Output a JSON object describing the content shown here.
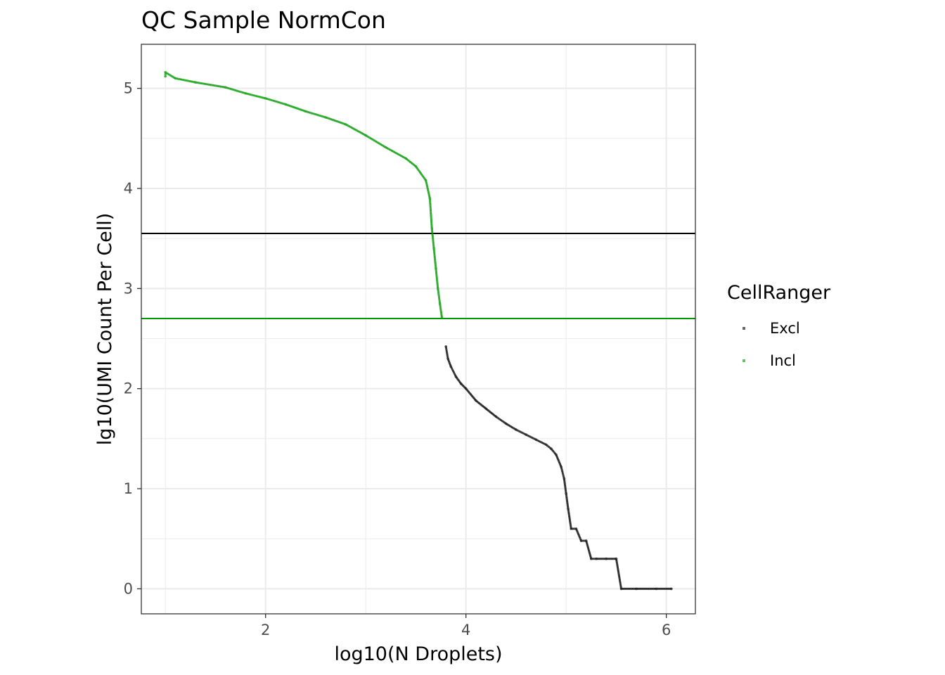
{
  "chart_data": {
    "type": "scatter",
    "title": "QC Sample NormCon",
    "xlabel": "log10(N Droplets)",
    "ylabel": "lg10(UMI Count Per Cell)",
    "xlim": [
      0.76,
      6.29
    ],
    "ylim": [
      -0.25,
      5.44
    ],
    "x_ticks": [
      2,
      4,
      6
    ],
    "y_ticks": [
      0,
      1,
      2,
      3,
      4,
      5
    ],
    "grid": true,
    "legend": {
      "title": "CellRanger",
      "position": "right",
      "entries": [
        {
          "label": "Excl",
          "color": "#000000"
        },
        {
          "label": "Incl",
          "color": "#009900"
        }
      ]
    },
    "hlines": [
      {
        "y": 3.55,
        "color": "#000000"
      },
      {
        "y": 2.7,
        "color": "#009900"
      }
    ],
    "series": [
      {
        "name": "Incl",
        "color": "#009900",
        "x": [
          1.0,
          1.0,
          1.1,
          1.3,
          1.6,
          1.8,
          2.0,
          2.2,
          2.4,
          2.6,
          2.8,
          3.0,
          3.2,
          3.4,
          3.5,
          3.6,
          3.64,
          3.66,
          3.68,
          3.7,
          3.72,
          3.74,
          3.76
        ],
        "y": [
          5.12,
          5.16,
          5.1,
          5.06,
          5.01,
          4.95,
          4.9,
          4.84,
          4.77,
          4.71,
          4.64,
          4.53,
          4.41,
          4.3,
          4.22,
          4.08,
          3.9,
          3.6,
          3.4,
          3.2,
          3.0,
          2.85,
          2.71
        ]
      },
      {
        "name": "Excl",
        "color": "#000000",
        "x": [
          3.8,
          3.82,
          3.85,
          3.9,
          3.95,
          4.0,
          4.1,
          4.2,
          4.3,
          4.4,
          4.5,
          4.6,
          4.7,
          4.8,
          4.85,
          4.9,
          4.95,
          4.98,
          5.0,
          5.02,
          5.05,
          5.1,
          5.15,
          5.2,
          5.25,
          5.3,
          5.4,
          5.5,
          5.55,
          5.7,
          5.9,
          6.05
        ],
        "y": [
          2.42,
          2.3,
          2.22,
          2.12,
          2.05,
          2.0,
          1.88,
          1.8,
          1.72,
          1.65,
          1.59,
          1.54,
          1.49,
          1.44,
          1.4,
          1.34,
          1.22,
          1.1,
          0.95,
          0.8,
          0.6,
          0.6,
          0.48,
          0.48,
          0.3,
          0.3,
          0.3,
          0.3,
          0.0,
          0.0,
          0.0,
          0.0
        ]
      }
    ]
  }
}
